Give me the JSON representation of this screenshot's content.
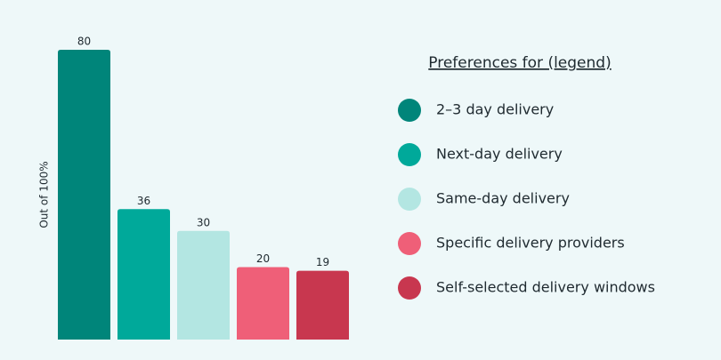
{
  "chart_data": {
    "type": "bar",
    "ylabel": "Out of 100%",
    "legend_title": "Preferences for (legend)",
    "categories": [
      "2–3 day delivery",
      "Next-day delivery",
      "Same-day delivery",
      "Specific delivery providers",
      "Self-selected delivery windows"
    ],
    "values": [
      80,
      36,
      30,
      20,
      19
    ],
    "colors": [
      "#00857a",
      "#00a99a",
      "#b3e6e2",
      "#ef5f78",
      "#c8374f"
    ],
    "ylim": [
      0,
      80
    ],
    "legend": "right"
  }
}
